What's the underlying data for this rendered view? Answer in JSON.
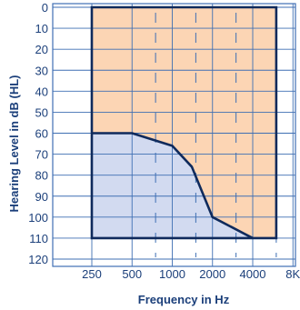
{
  "chart_data": {
    "type": "area",
    "xlabel": "Frequency in Hz",
    "ylabel": "Hearing Level in dB (HL)",
    "x_scale": "log",
    "y_inverted": true,
    "ylim": [
      0,
      120
    ],
    "x_ticks": [
      "250",
      "500",
      "1000",
      "2000",
      "4000",
      "8K"
    ],
    "y_ticks": [
      "0",
      "10",
      "20",
      "30",
      "40",
      "50",
      "60",
      "70",
      "80",
      "90",
      "100",
      "110",
      "120"
    ],
    "region": {
      "outline": [
        {
          "x": 250,
          "y": 0
        },
        {
          "x": 6000,
          "y": 0
        },
        {
          "x": 6000,
          "y": 110
        },
        {
          "x": 250,
          "y": 110
        }
      ]
    },
    "boundary_curve": [
      {
        "x": 250,
        "y": 60
      },
      {
        "x": 500,
        "y": 60
      },
      {
        "x": 1000,
        "y": 66
      },
      {
        "x": 1400,
        "y": 76
      },
      {
        "x": 2000,
        "y": 100
      },
      {
        "x": 4000,
        "y": 110
      }
    ],
    "grid": true,
    "colors": {
      "upper_fill": "#fcd5b4",
      "lower_fill": "#d2daf0",
      "outline": "#0f2a5c",
      "grid": "#3f6fb3",
      "text": "#1b3f7a"
    }
  }
}
